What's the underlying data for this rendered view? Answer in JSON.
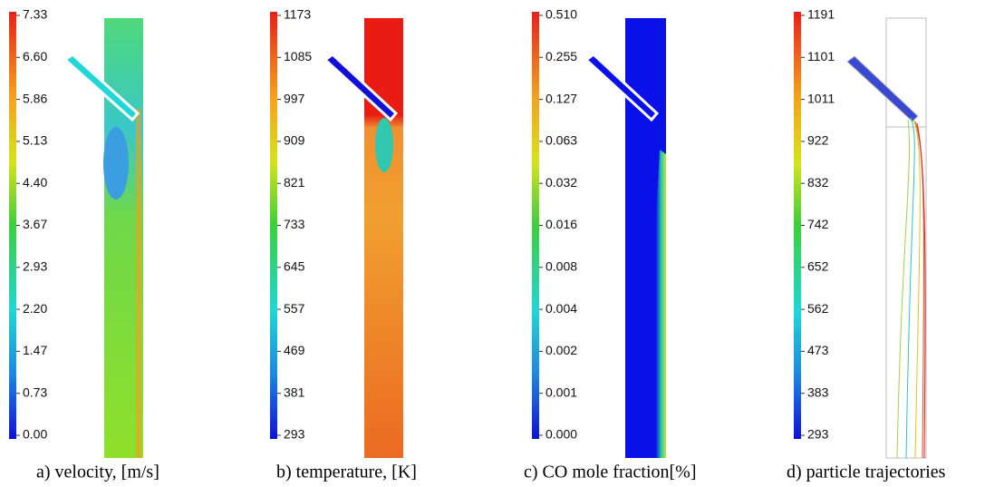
{
  "panels": [
    {
      "ticks": [
        "7.33",
        "6.60",
        "5.86",
        "5.13",
        "4.40",
        "3.67",
        "2.93",
        "2.20",
        "1.47",
        "0.73",
        "0.00"
      ],
      "caption": "a) velocity, [m/s]"
    },
    {
      "ticks": [
        "1173",
        "1085",
        "997",
        "909",
        "821",
        "733",
        "645",
        "557",
        "469",
        "381",
        "293"
      ],
      "caption": "b) temperature, [K]"
    },
    {
      "ticks": [
        "0.510",
        "0.255",
        "0.127",
        "0.063",
        "0.032",
        "0.016",
        "0.008",
        "0.004",
        "0.002",
        "0.001",
        "0.000"
      ],
      "caption": "c) CO mole fraction[%]"
    },
    {
      "ticks": [
        "1191",
        "1101",
        "1011",
        "922",
        "832",
        "742",
        "652",
        "562",
        "473",
        "383",
        "293"
      ],
      "caption": "d) particle trajectories"
    }
  ]
}
